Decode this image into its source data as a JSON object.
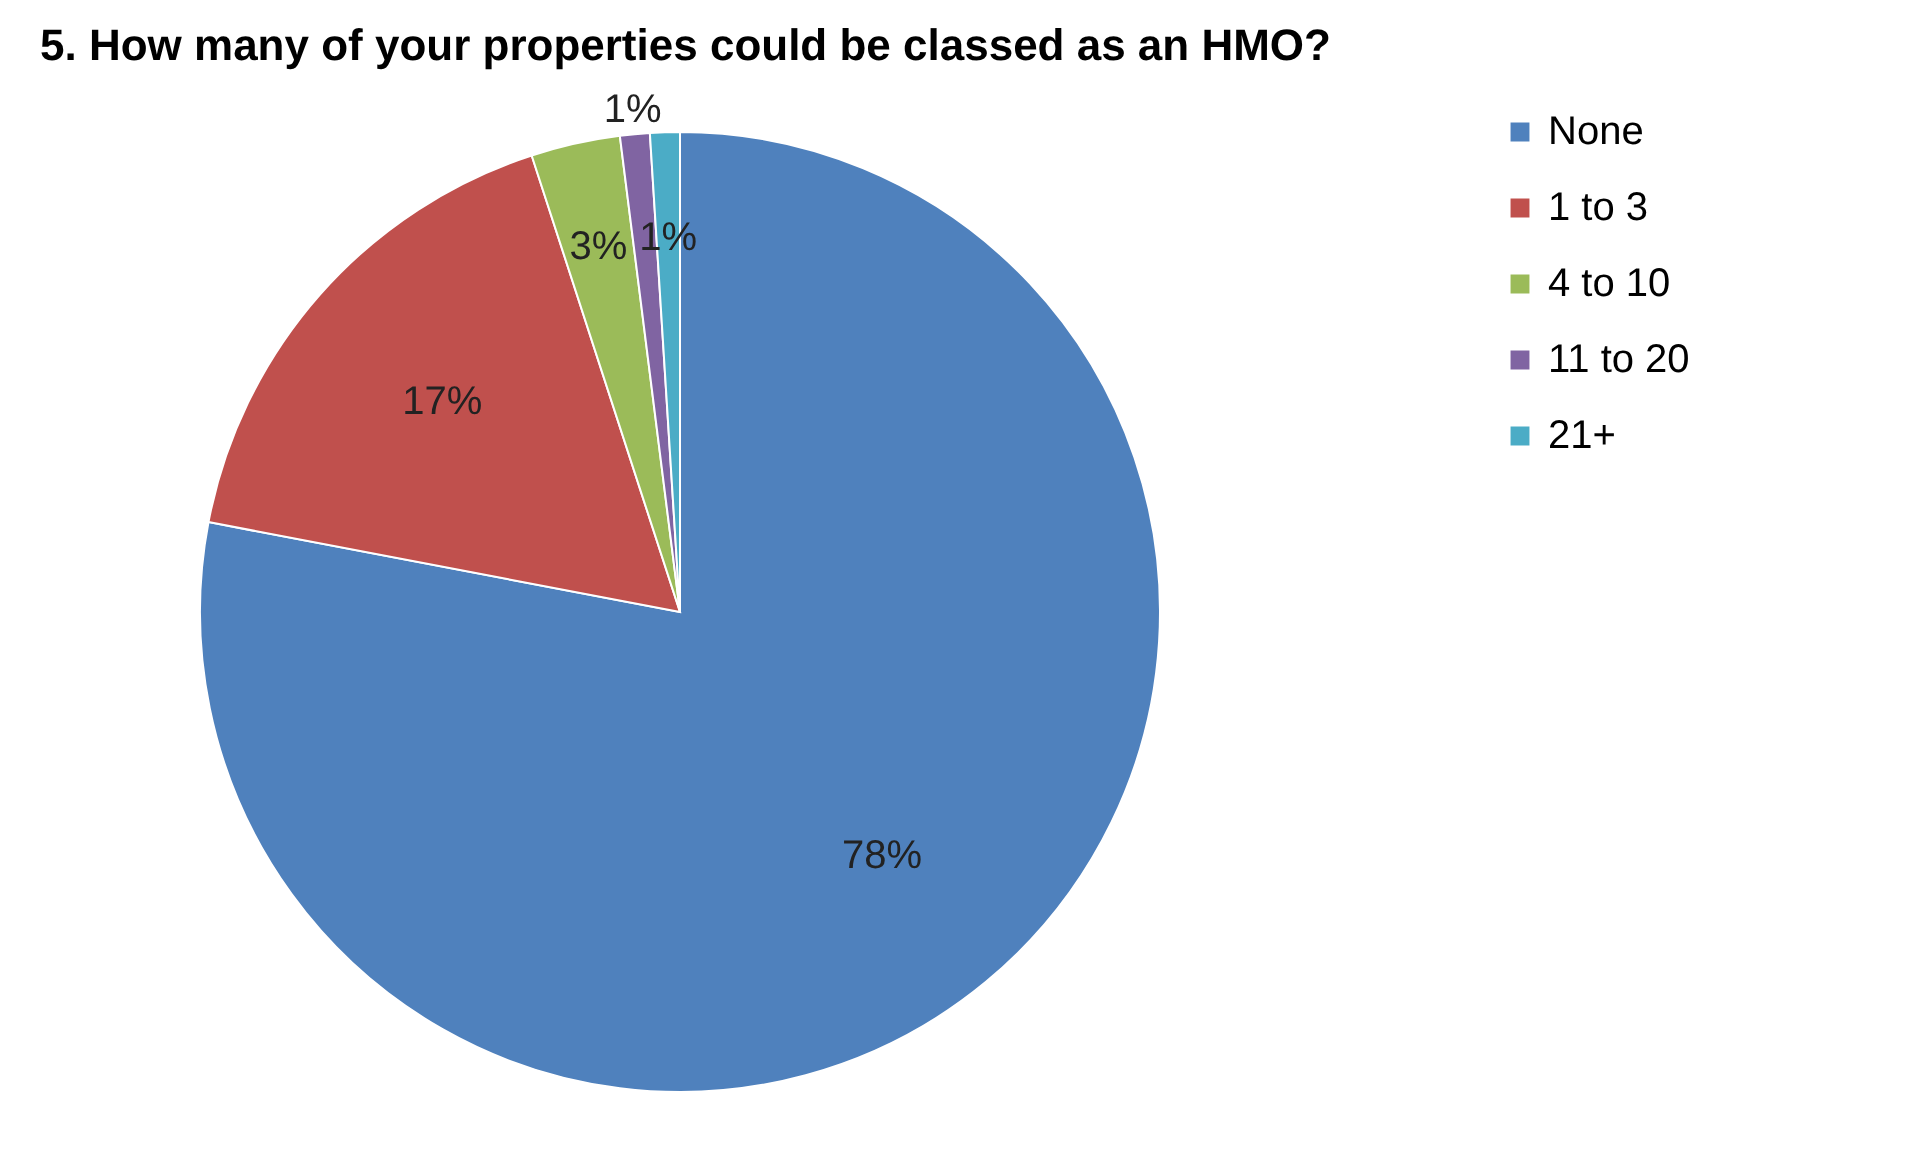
{
  "chart_data": {
    "type": "pie",
    "title": "5. How many of your properties could be classed as an HMO?",
    "categories": [
      "None",
      "1 to 3",
      "4 to 10",
      "11 to 20",
      "21+"
    ],
    "values": [
      78,
      17,
      3,
      1,
      1
    ],
    "value_labels": [
      "78%",
      "17%",
      "3%",
      "1%",
      "1%"
    ],
    "colors": [
      "#4f81bd",
      "#c0504d",
      "#9bbb59",
      "#8064a2",
      "#4bacc6"
    ],
    "legend": "right"
  }
}
